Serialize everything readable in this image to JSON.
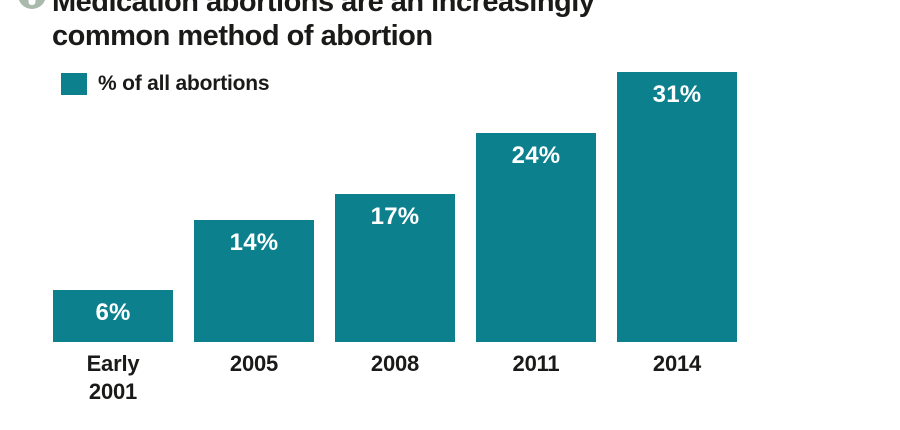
{
  "figure_badge": {
    "icon": "figure-marker-icon",
    "color": "#a9b9ab"
  },
  "header": {
    "title_line1": "Medication abortions are an increasingly",
    "title_line2": "common method of abortion"
  },
  "legend": {
    "label": "% of all abortions",
    "swatch_color": "#0d808d"
  },
  "chart_data": {
    "type": "bar",
    "categories": [
      "Early\n2001",
      "2005",
      "2008",
      "2011",
      "2014"
    ],
    "values": [
      6,
      14,
      17,
      24,
      31
    ],
    "value_labels": [
      "6%",
      "14%",
      "17%",
      "24%",
      "31%"
    ],
    "title": "Medication abortions are an increasingly common method of abortion",
    "legend_entries": [
      "% of all abortions"
    ],
    "legend_position": "top-left",
    "xlabel": "",
    "ylabel": "",
    "ylim": [
      0,
      31
    ],
    "grid": false,
    "bar_color": "#0d808d",
    "value_label_color": "#ffffff",
    "axis_label_color": "#1a1a18"
  },
  "colors": {
    "background": "#ffffff",
    "accent_teal": "#0d808d",
    "text": "#1a1a18",
    "badge_sage": "#a9b9ab"
  }
}
